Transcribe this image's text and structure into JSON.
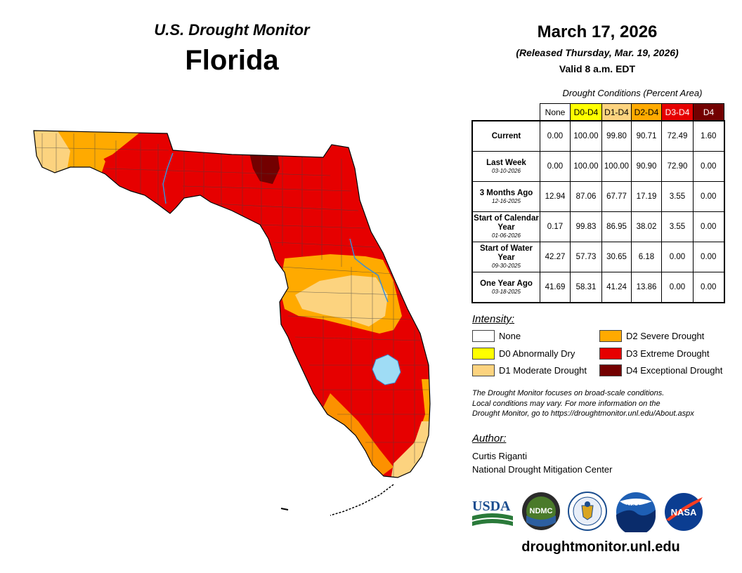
{
  "header": {
    "monitor_title": "U.S. Drought Monitor",
    "region": "Florida",
    "date": "March 17, 2026",
    "released": "(Released Thursday, Mar. 19, 2026)",
    "valid": "Valid 8 a.m. EDT"
  },
  "table": {
    "caption": "Drought Conditions (Percent Area)",
    "columns": [
      "None",
      "D0-D4",
      "D1-D4",
      "D2-D4",
      "D3-D4",
      "D4"
    ],
    "column_colors": [
      "#ffffff",
      "#ffff00",
      "#fcd37f",
      "#ffaa00",
      "#e60000",
      "#730000"
    ],
    "rows": [
      {
        "label": "Current",
        "date": "",
        "values": [
          "0.00",
          "100.00",
          "99.80",
          "90.71",
          "72.49",
          "1.60"
        ]
      },
      {
        "label": "Last Week",
        "date": "03-10-2026",
        "values": [
          "0.00",
          "100.00",
          "100.00",
          "90.90",
          "72.90",
          "0.00"
        ]
      },
      {
        "label": "3 Months Ago",
        "date": "12-16-2025",
        "values": [
          "12.94",
          "87.06",
          "67.77",
          "17.19",
          "3.55",
          "0.00"
        ]
      },
      {
        "label": "Start of Calendar Year",
        "date": "01-06-2026",
        "values": [
          "0.17",
          "99.83",
          "86.95",
          "38.02",
          "3.55",
          "0.00"
        ]
      },
      {
        "label": "Start of Water Year",
        "date": "09-30-2025",
        "values": [
          "42.27",
          "57.73",
          "30.65",
          "6.18",
          "0.00",
          "0.00"
        ]
      },
      {
        "label": "One Year Ago",
        "date": "03-18-2025",
        "values": [
          "41.69",
          "58.31",
          "41.24",
          "13.86",
          "0.00",
          "0.00"
        ]
      }
    ]
  },
  "legend": {
    "title": "Intensity:",
    "items": [
      {
        "label": "None",
        "color": "#ffffff"
      },
      {
        "label": "D0 Abnormally Dry",
        "color": "#ffff00"
      },
      {
        "label": "D1 Moderate Drought",
        "color": "#fcd37f"
      },
      {
        "label": "D2 Severe Drought",
        "color": "#ffaa00"
      },
      {
        "label": "D3 Extreme Drought",
        "color": "#e60000"
      },
      {
        "label": "D4 Exceptional Drought",
        "color": "#730000"
      }
    ]
  },
  "note": {
    "line1": "The Drought Monitor focuses on broad-scale conditions.",
    "line2": "Local conditions may vary. For more information on the",
    "line3": "Drought Monitor, go to https://droughtmonitor.unl.edu/About.aspx"
  },
  "author": {
    "heading": "Author:",
    "name": "Curtis Riganti",
    "org": "National Drought Mitigation Center"
  },
  "logos": {
    "usda": "USDA",
    "ndmc": "NDMC",
    "noaa": "NOAA",
    "nasa": "NASA",
    "commerce_icon": "dept-of-commerce-seal-icon"
  },
  "footer_url": "droughtmonitor.unl.edu"
}
